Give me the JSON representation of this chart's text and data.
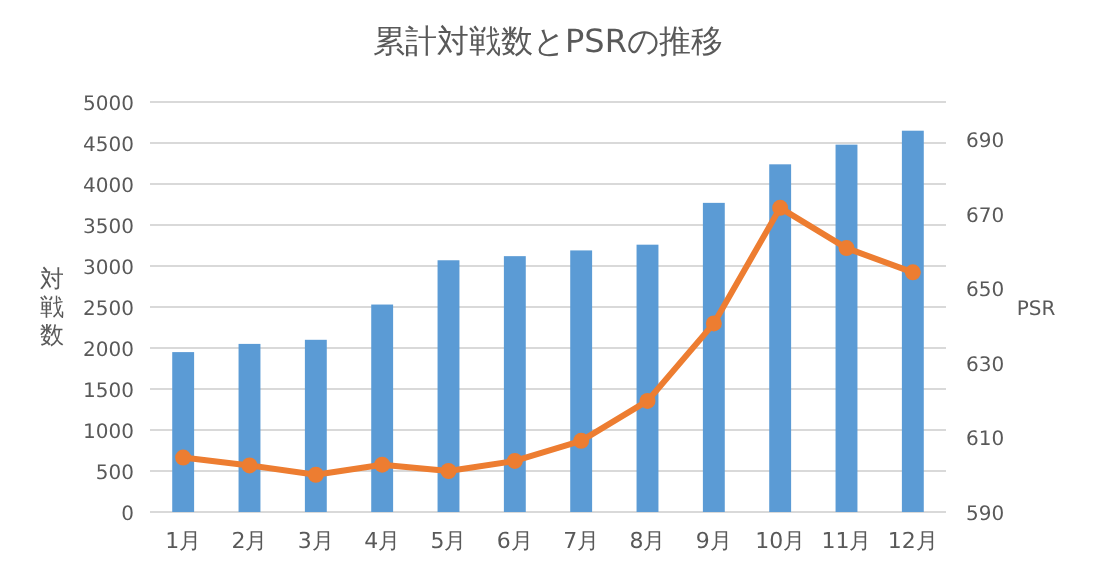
{
  "chart_data": {
    "type": "bar",
    "title": "累計対戦数とPSRの推移",
    "ylabel": "対戦数",
    "y2label": "PSR",
    "categories": [
      "1月",
      "2月",
      "3月",
      "4月",
      "5月",
      "6月",
      "7月",
      "8月",
      "9月",
      "10月",
      "11月",
      "12月"
    ],
    "series": [
      {
        "color": "#5b9bd5",
        "values": [
          1950,
          2050,
          2100,
          2530,
          3070,
          3120,
          3190,
          3260,
          3770,
          4240,
          4480,
          4650
        ]
      },
      {
        "type": "line",
        "axis": "y2",
        "color": "#ed7d31",
        "marker": "circle",
        "values": [
          604.6,
          602.5,
          600,
          602.7,
          601,
          603.7,
          609.1,
          619.8,
          640.6,
          671.6,
          660.8,
          654.3
        ]
      }
    ],
    "ylim": [
      0,
      5000
    ],
    "yticks": [
      0,
      500,
      1000,
      1500,
      2000,
      2500,
      3000,
      3500,
      4000,
      4500,
      5000
    ],
    "y2lim": [
      590,
      700
    ],
    "y2ticks": [
      590,
      610,
      630,
      650,
      670,
      690
    ],
    "grid": "y"
  }
}
